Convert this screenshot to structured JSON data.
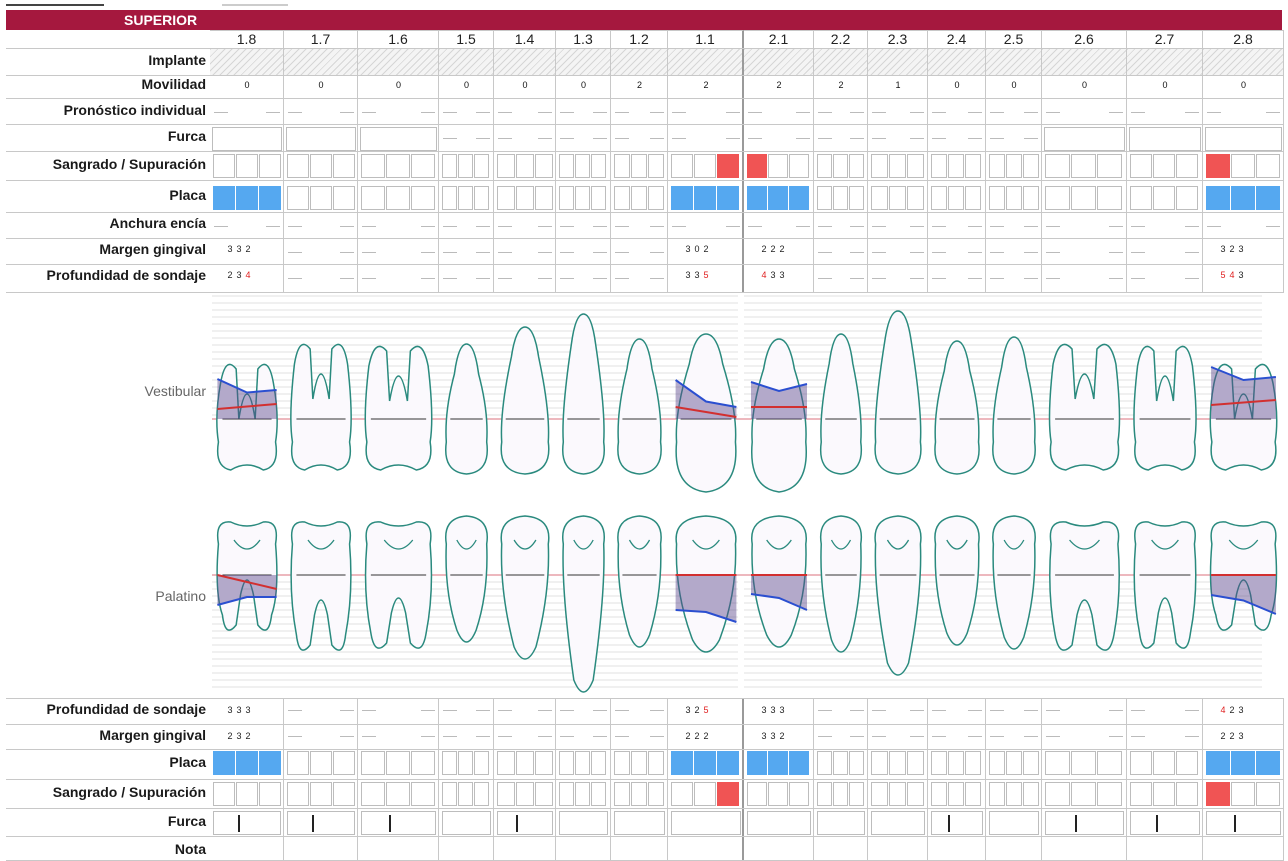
{
  "section_title": "SUPERIOR",
  "teeth": [
    "1.8",
    "1.7",
    "1.6",
    "1.5",
    "1.4",
    "1.3",
    "1.2",
    "1.1",
    "2.1",
    "2.2",
    "2.3",
    "2.4",
    "2.5",
    "2.6",
    "2.7",
    "2.8"
  ],
  "row_labels_top": {
    "implante": "Implante",
    "movilidad": "Movilidad",
    "pronostico": "Pronóstico individual",
    "furca": "Furca",
    "sangrado": "Sangrado / Supuración",
    "placa": "Placa",
    "anchura": "Anchura encía",
    "margen": "Margen gingival",
    "profundidad": "Profundidad de sondaje"
  },
  "row_labels_bottom": {
    "profundidad": "Profundidad de sondaje",
    "margen": "Margen gingival",
    "placa": "Placa",
    "sangrado": "Sangrado / Supuración",
    "furca": "Furca",
    "nota": "Nota"
  },
  "view_labels": {
    "vestibular": "Vestibular",
    "palatino": "Palatino"
  },
  "movilidad": [
    "0",
    "0",
    "0",
    "0",
    "0",
    "0",
    "2",
    "2",
    "2",
    "2",
    "1",
    "0",
    "0",
    "0",
    "0",
    "0"
  ],
  "colors": {
    "header": "#a5183e",
    "plaque": "#55a8f0",
    "bleeding": "#f05454",
    "probe_red": "#e02020",
    "tooth_outline": "#2a8a7e"
  },
  "top": {
    "sangrado": [
      [
        0,
        0,
        0
      ],
      [
        0,
        0,
        0
      ],
      [
        0,
        0,
        0
      ],
      [
        0,
        0,
        0
      ],
      [
        0,
        0,
        0
      ],
      [
        0,
        0,
        0
      ],
      [
        0,
        0,
        0
      ],
      [
        0,
        0,
        1
      ],
      [
        1,
        0,
        0
      ],
      [
        0,
        0,
        0
      ],
      [
        0,
        0,
        0
      ],
      [
        0,
        0,
        0
      ],
      [
        0,
        0,
        0
      ],
      [
        0,
        0,
        0
      ],
      [
        0,
        0,
        0
      ],
      [
        1,
        0,
        0
      ]
    ],
    "placa": [
      [
        1,
        1,
        1
      ],
      [
        0,
        0,
        0
      ],
      [
        0,
        0,
        0
      ],
      [
        0,
        0,
        0
      ],
      [
        0,
        0,
        0
      ],
      [
        0,
        0,
        0
      ],
      [
        0,
        0,
        0
      ],
      [
        1,
        1,
        1
      ],
      [
        1,
        1,
        1
      ],
      [
        0,
        0,
        0
      ],
      [
        0,
        0,
        0
      ],
      [
        0,
        0,
        0
      ],
      [
        0,
        0,
        0
      ],
      [
        0,
        0,
        0
      ],
      [
        0,
        0,
        0
      ],
      [
        1,
        1,
        1
      ]
    ],
    "margen": {
      "0": [
        "3",
        "3",
        "2"
      ],
      "7": [
        "3",
        "0",
        "2"
      ],
      "8": [
        "2",
        "2",
        "2"
      ],
      "15": [
        "3",
        "2",
        "3"
      ]
    },
    "profundidad": {
      "0": [
        "2",
        "3",
        "4"
      ],
      "7": [
        "3",
        "3",
        "5"
      ],
      "8": [
        "4",
        "3",
        "3"
      ],
      "15": [
        "5",
        "4",
        "3"
      ]
    },
    "profundidad_red": {
      "0": [
        0,
        0,
        1
      ],
      "7": [
        0,
        0,
        1
      ],
      "8": [
        1,
        0,
        0
      ],
      "15": [
        1,
        1,
        0
      ]
    }
  },
  "bottom": {
    "profundidad": {
      "0": [
        "3",
        "3",
        "3"
      ],
      "7": [
        "3",
        "2",
        "5"
      ],
      "8": [
        "3",
        "3",
        "3"
      ],
      "15": [
        "4",
        "2",
        "3"
      ]
    },
    "profundidad_red": {
      "0": [
        0,
        0,
        0
      ],
      "7": [
        0,
        0,
        1
      ],
      "8": [
        0,
        0,
        0
      ],
      "15": [
        1,
        0,
        0
      ]
    },
    "margen": {
      "0": [
        "2",
        "3",
        "2"
      ],
      "7": [
        "2",
        "2",
        "2"
      ],
      "8": [
        "3",
        "3",
        "2"
      ],
      "15": [
        "2",
        "2",
        "3"
      ]
    },
    "placa": [
      [
        1,
        1,
        1
      ],
      [
        0,
        0,
        0
      ],
      [
        0,
        0,
        0
      ],
      [
        0,
        0,
        0
      ],
      [
        0,
        0,
        0
      ],
      [
        0,
        0,
        0
      ],
      [
        0,
        0,
        0
      ],
      [
        1,
        1,
        1
      ],
      [
        1,
        1,
        1
      ],
      [
        0,
        0,
        0
      ],
      [
        0,
        0,
        0
      ],
      [
        0,
        0,
        0
      ],
      [
        0,
        0,
        0
      ],
      [
        0,
        0,
        0
      ],
      [
        0,
        0,
        0
      ],
      [
        1,
        1,
        1
      ]
    ],
    "sangrado": [
      [
        0,
        0,
        0
      ],
      [
        0,
        0,
        0
      ],
      [
        0,
        0,
        0
      ],
      [
        0,
        0,
        0
      ],
      [
        0,
        0,
        0
      ],
      [
        0,
        0,
        0
      ],
      [
        0,
        0,
        0
      ],
      [
        0,
        0,
        1
      ],
      [
        0,
        0,
        0
      ],
      [
        0,
        0,
        0
      ],
      [
        0,
        0,
        0
      ],
      [
        0,
        0,
        0
      ],
      [
        0,
        0,
        0
      ],
      [
        0,
        0,
        0
      ],
      [
        0,
        0,
        0
      ],
      [
        1,
        0,
        0
      ]
    ],
    "furca_marks": [
      1,
      1,
      1,
      0,
      1,
      0,
      0,
      0,
      0,
      0,
      0,
      1,
      0,
      1,
      1,
      1
    ]
  }
}
